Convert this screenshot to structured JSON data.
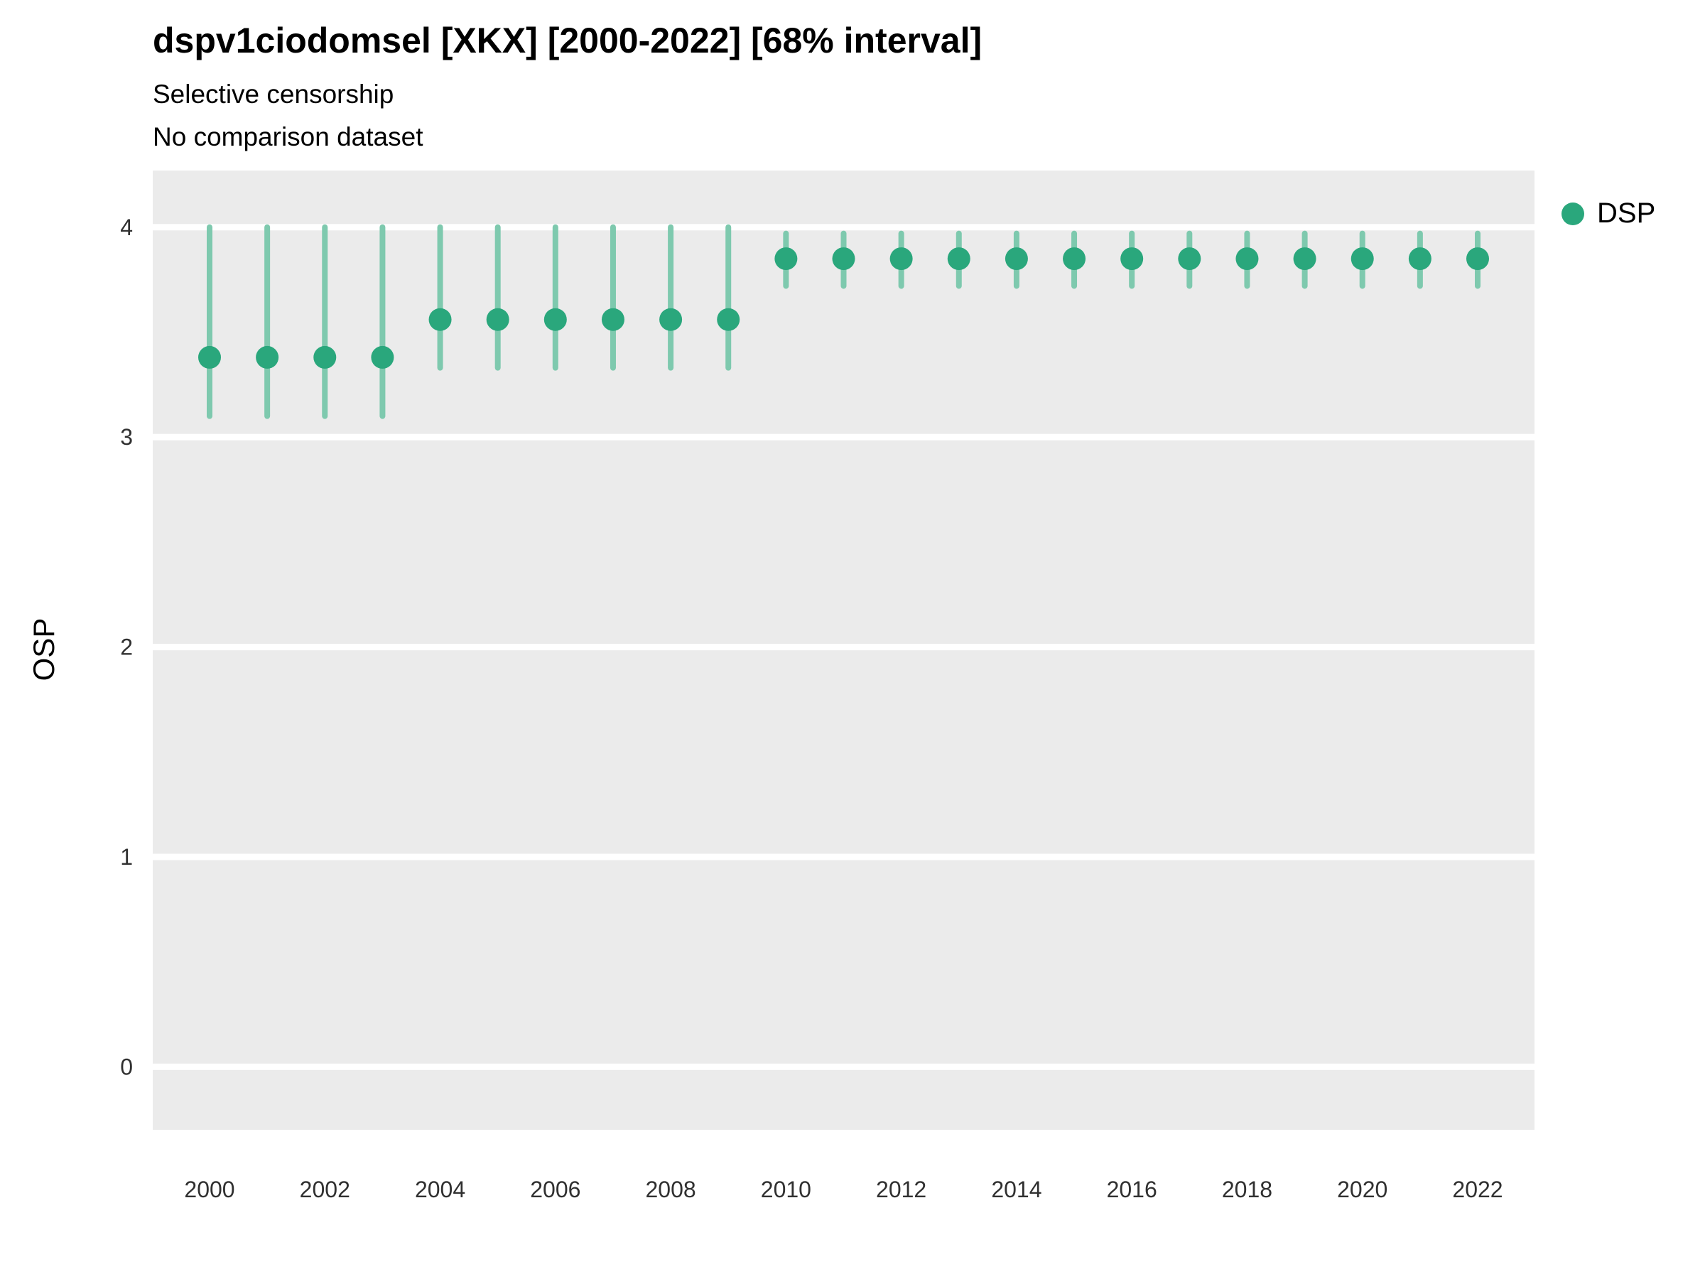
{
  "chart_data": {
    "type": "scatter",
    "title": "dspv1ciodomsel [XKX] [2000-2022] [68% interval]",
    "subtitle": [
      "Selective censorship",
      "No comparison dataset"
    ],
    "xlabel": "",
    "ylabel": "OSP",
    "interval": "68% interval",
    "legend": {
      "position": "right",
      "entries": [
        {
          "label": "DSP",
          "color": "#2aa77c"
        }
      ]
    },
    "x": [
      2000,
      2001,
      2002,
      2003,
      2004,
      2005,
      2006,
      2007,
      2008,
      2009,
      2010,
      2011,
      2012,
      2013,
      2014,
      2015,
      2016,
      2017,
      2018,
      2019,
      2020,
      2021,
      2022
    ],
    "series": [
      {
        "name": "DSP",
        "values": [
          3.38,
          3.38,
          3.38,
          3.38,
          3.56,
          3.56,
          3.56,
          3.56,
          3.56,
          3.56,
          3.85,
          3.85,
          3.85,
          3.85,
          3.85,
          3.85,
          3.85,
          3.85,
          3.85,
          3.85,
          3.85,
          3.85,
          3.85
        ],
        "lower": [
          3.1,
          3.1,
          3.1,
          3.1,
          3.33,
          3.33,
          3.33,
          3.33,
          3.33,
          3.33,
          3.72,
          3.72,
          3.72,
          3.72,
          3.72,
          3.72,
          3.72,
          3.72,
          3.72,
          3.72,
          3.72,
          3.72,
          3.72
        ],
        "upper": [
          4.0,
          4.0,
          4.0,
          4.0,
          4.0,
          4.0,
          4.0,
          4.0,
          4.0,
          4.0,
          3.97,
          3.97,
          3.97,
          3.97,
          3.97,
          3.97,
          3.97,
          3.97,
          3.97,
          3.97,
          3.97,
          3.97,
          3.97
        ]
      }
    ],
    "yticks": [
      0,
      1,
      2,
      3,
      4
    ],
    "xticks": [
      2000,
      2002,
      2004,
      2006,
      2008,
      2010,
      2012,
      2014,
      2016,
      2018,
      2020,
      2022
    ],
    "ylim": [
      -0.3,
      4.27
    ],
    "grid": "horizontal-major-white",
    "colors": {
      "panel_bg": "#ebebeb",
      "grid": "#ffffff",
      "point": "#2aa77c",
      "interval": "#7ec9ae",
      "tick_text": "#303030"
    }
  }
}
